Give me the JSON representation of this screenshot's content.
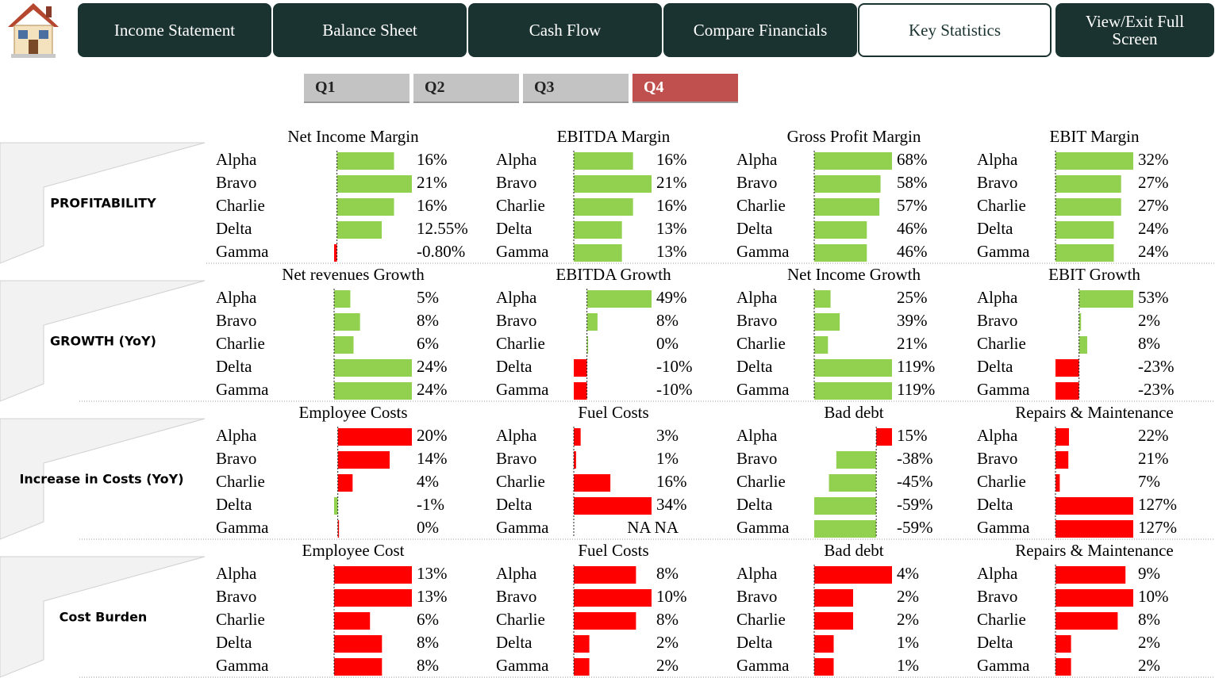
{
  "nav": {
    "buttons": [
      {
        "label": "Income Statement",
        "active": false
      },
      {
        "label": "Balance Sheet",
        "active": false
      },
      {
        "label": "Cash Flow",
        "active": false
      },
      {
        "label": "Compare Financials",
        "active": false
      },
      {
        "label": "Key Statistics",
        "active": true
      },
      {
        "label": "View/Exit Full Screen",
        "active": false
      }
    ]
  },
  "quarters": {
    "buttons": [
      {
        "label": "Q1",
        "active": false
      },
      {
        "label": "Q2",
        "active": false
      },
      {
        "label": "Q3",
        "active": false
      },
      {
        "label": "Q4",
        "active": true
      }
    ]
  },
  "sections": [
    {
      "label": "PROFITABILITY",
      "positive_color": "#92d050",
      "negative_color": "#ff0000",
      "charts": [
        {
          "type": "bar",
          "title": "Net Income Margin",
          "categories": [
            "Alpha",
            "Bravo",
            "Charlie",
            "Delta",
            "Gamma"
          ],
          "values": [
            16,
            21,
            16,
            12.55,
            -0.8
          ],
          "value_labels": [
            "16%",
            "21%",
            "16%",
            "12.55%",
            "-0.80%"
          ]
        },
        {
          "type": "bar",
          "title": "EBITDA Margin",
          "categories": [
            "Alpha",
            "Bravo",
            "Charlie",
            "Delta",
            "Gamma"
          ],
          "values": [
            16,
            21,
            16,
            13,
            13
          ],
          "value_labels": [
            "16%",
            "21%",
            "16%",
            "13%",
            "13%"
          ]
        },
        {
          "type": "bar",
          "title": "Gross Profit Margin",
          "categories": [
            "Alpha",
            "Bravo",
            "Charlie",
            "Delta",
            "Gamma"
          ],
          "values": [
            68,
            58,
            57,
            46,
            46
          ],
          "value_labels": [
            "68%",
            "58%",
            "57%",
            "46%",
            "46%"
          ]
        },
        {
          "type": "bar",
          "title": "EBIT Margin",
          "categories": [
            "Alpha",
            "Bravo",
            "Charlie",
            "Delta",
            "Gamma"
          ],
          "values": [
            32,
            27,
            27,
            24,
            24
          ],
          "value_labels": [
            "32%",
            "27%",
            "27%",
            "24%",
            "24%"
          ]
        }
      ]
    },
    {
      "label": "GROWTH (YoY)",
      "positive_color": "#92d050",
      "negative_color": "#ff0000",
      "charts": [
        {
          "type": "bar",
          "title": "Net revenues Growth",
          "categories": [
            "Alpha",
            "Bravo",
            "Charlie",
            "Delta",
            "Gamma"
          ],
          "values": [
            5,
            8,
            6,
            24,
            24
          ],
          "value_labels": [
            "5%",
            "8%",
            "6%",
            "24%",
            "24%"
          ]
        },
        {
          "type": "bar",
          "title": "EBITDA Growth",
          "categories": [
            "Alpha",
            "Bravo",
            "Charlie",
            "Delta",
            "Gamma"
          ],
          "values": [
            49,
            8,
            0,
            -10,
            -10
          ],
          "value_labels": [
            "49%",
            "8%",
            "0%",
            "-10%",
            "-10%"
          ]
        },
        {
          "type": "bar",
          "title": "Net Income Growth",
          "categories": [
            "Alpha",
            "Bravo",
            "Charlie",
            "Delta",
            "Gamma"
          ],
          "values": [
            25,
            39,
            21,
            119,
            119
          ],
          "value_labels": [
            "25%",
            "39%",
            "21%",
            "119%",
            "119%"
          ]
        },
        {
          "type": "bar",
          "title": "EBIT Growth",
          "categories": [
            "Alpha",
            "Bravo",
            "Charlie",
            "Delta",
            "Gamma"
          ],
          "values": [
            53,
            2,
            8,
            -23,
            -23
          ],
          "value_labels": [
            "53%",
            "2%",
            "8%",
            "-23%",
            "-23%"
          ]
        }
      ]
    },
    {
      "label": "Increase in Costs (YoY)",
      "positive_color": "#ff0000",
      "negative_color": "#92d050",
      "charts": [
        {
          "type": "bar",
          "title": "Employee Costs",
          "categories": [
            "Alpha",
            "Bravo",
            "Charlie",
            "Delta",
            "Gamma"
          ],
          "values": [
            20,
            14,
            4,
            -1,
            0
          ],
          "value_labels": [
            "20%",
            "14%",
            "4%",
            "-1%",
            "0%"
          ]
        },
        {
          "type": "bar",
          "title": "Fuel Costs",
          "categories": [
            "Alpha",
            "Bravo",
            "Charlie",
            "Delta",
            "Gamma"
          ],
          "values": [
            3,
            1,
            16,
            34,
            null
          ],
          "value_labels": [
            "3%",
            "1%",
            "16%",
            "34%",
            "NA NA"
          ]
        },
        {
          "type": "bar",
          "title": "Bad debt",
          "categories": [
            "Alpha",
            "Bravo",
            "Charlie",
            "Delta",
            "Gamma"
          ],
          "values": [
            15,
            -38,
            -45,
            -59,
            -59
          ],
          "value_labels": [
            "15%",
            "-38%",
            "-45%",
            "-59%",
            "-59%"
          ]
        },
        {
          "type": "bar",
          "title": "Repairs & Maintenance",
          "categories": [
            "Alpha",
            "Bravo",
            "Charlie",
            "Delta",
            "Gamma"
          ],
          "values": [
            22,
            21,
            7,
            127,
            127
          ],
          "value_labels": [
            "22%",
            "21%",
            "7%",
            "127%",
            "127%"
          ]
        }
      ]
    },
    {
      "label": "Cost Burden",
      "positive_color": "#ff0000",
      "negative_color": "#92d050",
      "charts": [
        {
          "type": "bar",
          "title": "Employee Cost",
          "categories": [
            "Alpha",
            "Bravo",
            "Charlie",
            "Delta",
            "Gamma"
          ],
          "values": [
            13,
            13,
            6,
            8,
            8
          ],
          "value_labels": [
            "13%",
            "13%",
            "6%",
            "8%",
            "8%"
          ]
        },
        {
          "type": "bar",
          "title": "Fuel Costs",
          "categories": [
            "Alpha",
            "Bravo",
            "Charlie",
            "Delta",
            "Gamma"
          ],
          "values": [
            8,
            10,
            8,
            2,
            2
          ],
          "value_labels": [
            "8%",
            "10%",
            "8%",
            "2%",
            "2%"
          ]
        },
        {
          "type": "bar",
          "title": "Bad debt",
          "categories": [
            "Alpha",
            "Bravo",
            "Charlie",
            "Delta",
            "Gamma"
          ],
          "values": [
            4,
            2,
            2,
            1,
            1
          ],
          "value_labels": [
            "4%",
            "2%",
            "2%",
            "1%",
            "1%"
          ]
        },
        {
          "type": "bar",
          "title": "Repairs & Maintenance",
          "categories": [
            "Alpha",
            "Bravo",
            "Charlie",
            "Delta",
            "Gamma"
          ],
          "values": [
            9,
            10,
            8,
            2,
            2
          ],
          "value_labels": [
            "9%",
            "10%",
            "8%",
            "2%",
            "2%"
          ]
        }
      ]
    }
  ]
}
